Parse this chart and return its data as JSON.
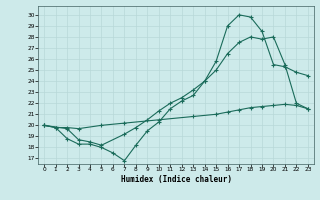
{
  "title": "",
  "xlabel": "Humidex (Indice chaleur)",
  "bg_color": "#cdeaea",
  "line_color": "#1a6b5a",
  "grid_color": "#b8d8d8",
  "xlim": [
    -0.5,
    23.5
  ],
  "ylim": [
    16.5,
    30.8
  ],
  "yticks": [
    17,
    18,
    19,
    20,
    21,
    22,
    23,
    24,
    25,
    26,
    27,
    28,
    29,
    30
  ],
  "xticks": [
    0,
    1,
    2,
    3,
    4,
    5,
    6,
    7,
    8,
    9,
    10,
    11,
    12,
    13,
    14,
    15,
    16,
    17,
    18,
    19,
    20,
    21,
    22,
    23
  ],
  "line1_x": [
    0,
    1,
    2,
    3,
    4,
    5,
    6,
    7,
    8,
    9,
    10,
    11,
    12,
    13,
    14,
    15,
    16,
    17,
    18,
    19,
    20,
    21,
    22,
    23
  ],
  "line1_y": [
    20.0,
    19.8,
    18.8,
    18.3,
    18.3,
    18.0,
    17.5,
    16.8,
    18.2,
    19.5,
    20.3,
    21.5,
    22.2,
    22.7,
    24.0,
    25.8,
    29.0,
    30.0,
    29.8,
    28.5,
    25.5,
    25.3,
    24.8,
    24.5
  ],
  "line2_x": [
    0,
    2,
    3,
    4,
    5,
    7,
    8,
    9,
    10,
    11,
    12,
    13,
    14,
    15,
    16,
    17,
    18,
    19,
    20,
    21,
    22,
    23
  ],
  "line2_y": [
    20.0,
    19.7,
    18.7,
    18.5,
    18.2,
    19.2,
    19.8,
    20.5,
    21.3,
    22.0,
    22.5,
    23.2,
    24.0,
    25.0,
    26.5,
    27.5,
    28.0,
    27.8,
    28.0,
    25.5,
    22.0,
    21.5
  ],
  "line3_x": [
    0,
    1,
    2,
    3,
    5,
    7,
    10,
    13,
    15,
    16,
    17,
    18,
    19,
    20,
    21,
    22,
    23
  ],
  "line3_y": [
    20.0,
    19.8,
    19.8,
    19.7,
    20.0,
    20.2,
    20.5,
    20.8,
    21.0,
    21.2,
    21.4,
    21.6,
    21.7,
    21.8,
    21.9,
    21.8,
    21.5
  ]
}
